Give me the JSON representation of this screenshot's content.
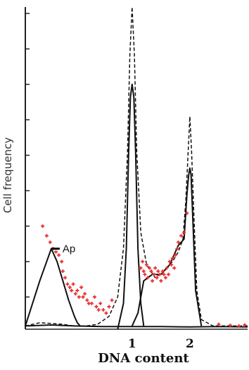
{
  "chart_data": {
    "type": "line",
    "title": "",
    "xlabel": "DNA content",
    "ylabel": "Cell frequency",
    "x_tick_labels": [
      {
        "x": 1,
        "label": "1"
      },
      {
        "x": 2,
        "label": "2"
      }
    ],
    "xlim": [
      -0.85,
      3.0
    ],
    "ylim": [
      0,
      100
    ],
    "annotation": {
      "text": "Ap",
      "x": -0.4,
      "y": 25
    },
    "series": [
      {
        "style": "dashed",
        "x": [
          -0.85,
          -0.6,
          -0.4,
          -0.2,
          0,
          0.2,
          0.4,
          0.6,
          0.75,
          0.85,
          0.92,
          0.96,
          1.0,
          1.04,
          1.08,
          1.15,
          1.25,
          1.4,
          1.55,
          1.7,
          1.8,
          1.88,
          1.93,
          1.97,
          2.0,
          2.03,
          2.07,
          2.12,
          2.2,
          2.4,
          2.6,
          2.8,
          3.0
        ],
        "y": [
          1,
          2,
          1.8,
          1.5,
          1,
          1,
          1.5,
          4,
          10,
          25,
          55,
          85,
          100,
          85,
          55,
          30,
          20,
          16,
          18,
          21,
          24,
          28,
          40,
          55,
          66,
          55,
          35,
          12,
          3,
          1,
          1,
          1,
          1
        ]
      },
      {
        "style": "solid",
        "x": [
          -0.85,
          -0.6,
          -0.5,
          -0.4,
          -0.3,
          -0.2,
          -0.1,
          0,
          0.05,
          0.1
        ],
        "y": [
          1,
          15,
          20,
          25,
          21,
          15,
          9,
          4,
          2,
          1
        ]
      },
      {
        "style": "solid",
        "x": [
          0.75,
          0.85,
          0.9,
          0.94,
          0.97,
          1.0,
          1.03,
          1.06,
          1.1,
          1.15,
          1.2
        ],
        "y": [
          0,
          8,
          25,
          55,
          72,
          76,
          72,
          55,
          25,
          8,
          1
        ]
      },
      {
        "style": "solid",
        "x": [
          1.0,
          1.1,
          1.2,
          1.35,
          1.5,
          1.65,
          1.8,
          1.9,
          1.95,
          1.98,
          2.0,
          2.02,
          2.05,
          2.1,
          2.2
        ],
        "y": [
          1,
          5,
          15,
          17,
          17,
          20,
          26,
          28,
          42,
          48,
          50,
          48,
          35,
          12,
          1
        ]
      },
      {
        "style": "solid",
        "x": [
          -0.85,
          -0.4,
          0,
          0.5,
          1.0,
          1.5,
          2.0,
          2.5,
          3.0
        ],
        "y": [
          1,
          1.3,
          1,
          0.8,
          0.8,
          0.8,
          0.7,
          0.8,
          0.7
        ]
      },
      {
        "style": "points",
        "color": "#e8312f",
        "x": [
          -0.55,
          -0.48,
          -0.42,
          -0.37,
          -0.32,
          -0.27,
          -0.22,
          -0.2,
          -0.16,
          -0.12,
          -0.08,
          -0.05,
          -0.02,
          0.02,
          0.05,
          0.08,
          0.12,
          0.15,
          0.18,
          0.22,
          0.25,
          0.3,
          0.35,
          0.38,
          0.42,
          0.45,
          0.5,
          0.55,
          0.6,
          0.65,
          1.15,
          1.18,
          1.2,
          1.22,
          1.25,
          1.27,
          1.3,
          1.33,
          1.35,
          1.38,
          1.4,
          1.43,
          1.45,
          1.48,
          1.5,
          1.53,
          1.55,
          1.58,
          1.6,
          1.63,
          1.65,
          1.68,
          1.7,
          1.73,
          1.75,
          1.78,
          1.8,
          1.85,
          1.9,
          1.95,
          2.5,
          2.7,
          2.85,
          2.95
        ],
        "y": [
          32,
          29,
          27,
          25,
          24,
          23,
          21,
          18,
          16,
          14,
          13,
          12,
          14,
          11,
          12,
          10,
          13,
          10,
          11,
          9,
          8,
          8,
          10,
          7,
          6,
          8,
          6,
          5,
          7,
          9,
          19,
          21,
          18,
          17,
          20,
          16,
          19,
          18,
          15,
          17,
          19,
          16,
          18,
          17,
          15,
          18,
          17,
          16,
          19,
          17,
          21,
          20,
          22,
          19,
          23,
          25,
          27,
          29,
          30,
          36,
          1.5,
          1.2,
          1,
          1.3
        ]
      }
    ]
  }
}
